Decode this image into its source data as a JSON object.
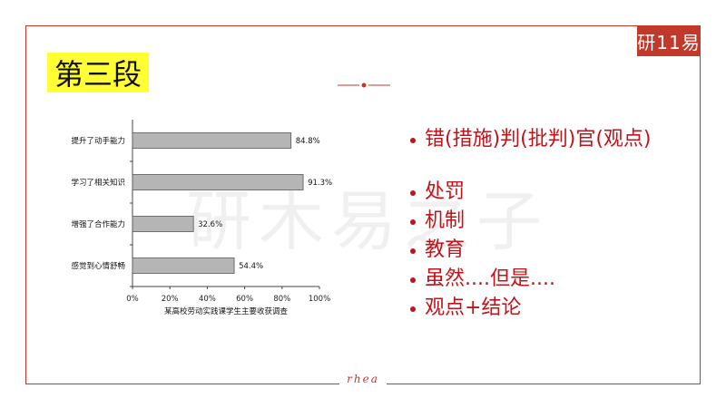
{
  "slide": {
    "title": "第三段",
    "logo_text": "研11易",
    "watermark": "研木易之子",
    "footer": "rhea",
    "bullets": [
      "错(措施)判(批判)官(观点)",
      "处罚",
      "机制",
      "教育",
      "虽然....但是....",
      "观点+结论"
    ]
  },
  "colors": {
    "frame": "#c0392b",
    "title_highlight": "#ffff33",
    "bullet_text": "#c0141a",
    "bar_fill": "#b5b5b5"
  },
  "chart_data": {
    "type": "bar",
    "orientation": "horizontal",
    "categories": [
      "提升了动手能力",
      "学习了相关知识",
      "增强了合作能力",
      "感觉到心情舒畅"
    ],
    "values": [
      84.8,
      91.3,
      32.6,
      54.4
    ],
    "value_labels": [
      "84.8%",
      "91.3%",
      "32.6%",
      "54.4%"
    ],
    "xlabel": "某高校劳动实践课学生主要收获调查",
    "xlim": [
      0,
      100
    ],
    "xticks": [
      "0%",
      "20%",
      "40%",
      "60%",
      "80%",
      "100%"
    ],
    "grid": false
  }
}
